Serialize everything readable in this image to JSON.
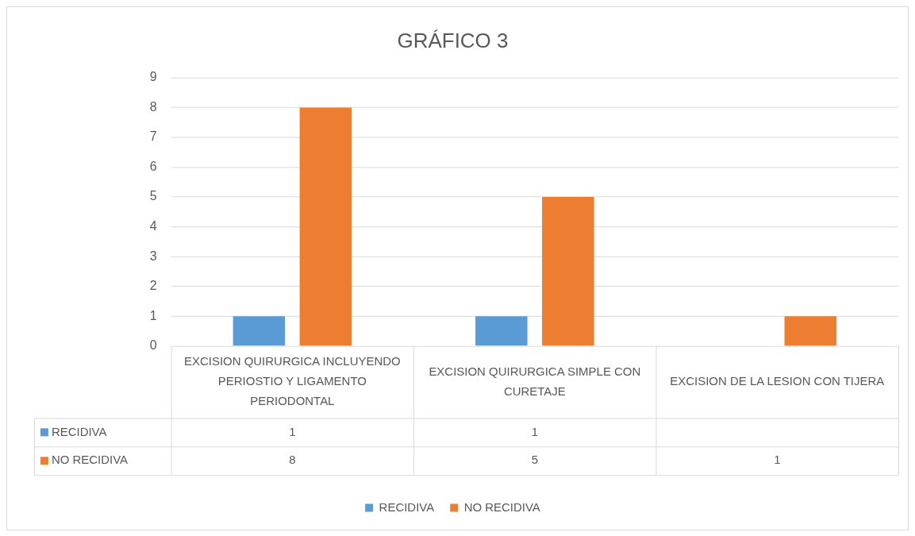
{
  "chart_data": {
    "type": "bar",
    "title": "GRÁFICO 3",
    "categories": [
      "EXCISION QUIRURGICA INCLUYENDO PERIOSTIO Y LIGAMENTO PERIODONTAL",
      "EXCISION QUIRURGICA SIMPLE CON CURETAJE",
      "EXCISION DE LA LESION CON TIJERA"
    ],
    "series": [
      {
        "name": "RECIDIVA",
        "color": "#5b9bd5",
        "values": [
          1,
          1,
          null
        ]
      },
      {
        "name": "NO RECIDIVA",
        "color": "#ed7d31",
        "values": [
          8,
          5,
          1
        ]
      }
    ],
    "ylim": [
      0,
      9
    ],
    "yticks": [
      0,
      1,
      2,
      3,
      4,
      5,
      6,
      7,
      8,
      9
    ],
    "grid": "y",
    "legend": "bottom",
    "data_labels": true
  }
}
